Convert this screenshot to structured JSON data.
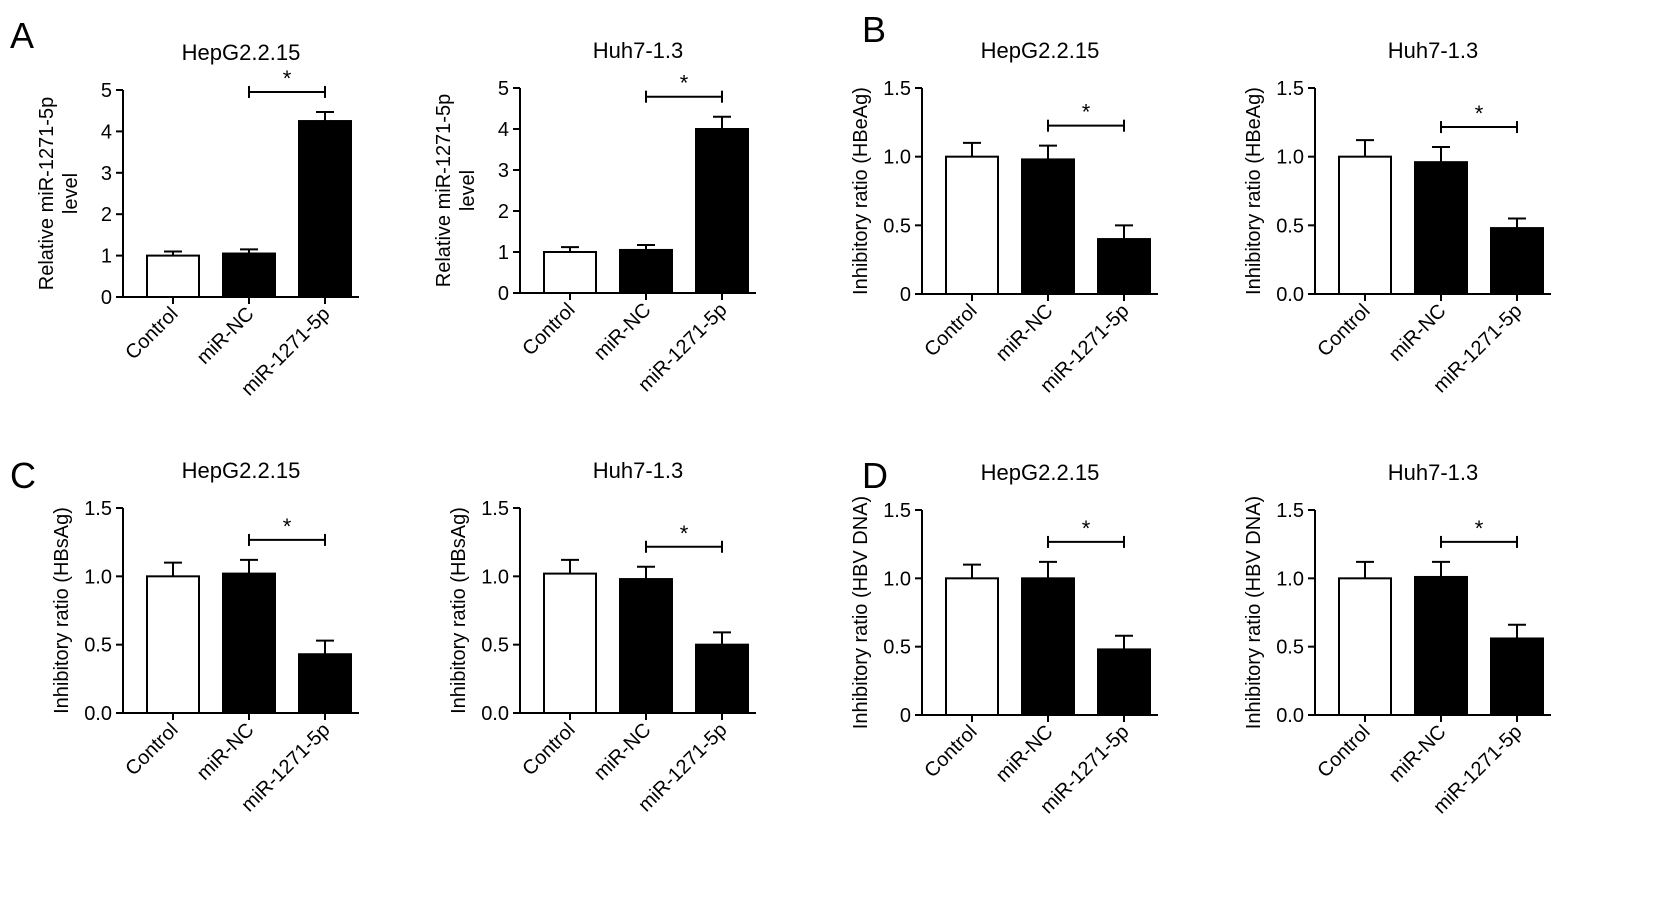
{
  "panels": [
    "A",
    "B",
    "C",
    "D"
  ],
  "chart_data": [
    {
      "panel": "A",
      "type": "bar",
      "title": "HepG2.2.15",
      "ylabel": [
        "Relative miR-1271-5p",
        "level"
      ],
      "categories": [
        "Control",
        "miR-NC",
        "miR-1271-5p"
      ],
      "values": [
        1.0,
        1.05,
        4.25
      ],
      "errors": [
        0.1,
        0.1,
        0.22
      ],
      "fills": [
        "#ffffff",
        "#000000",
        "#000000"
      ],
      "ylim": [
        0,
        5
      ],
      "yticks": [
        "0",
        "1",
        "2",
        "3",
        "4",
        "5"
      ],
      "significance": {
        "from": 1,
        "to": 2,
        "label": "*"
      }
    },
    {
      "panel": "A",
      "type": "bar",
      "title": "Huh7-1.3",
      "ylabel": [
        "Relative miR-1271-5p",
        "level"
      ],
      "categories": [
        "Control",
        "miR-NC",
        "miR-1271-5p"
      ],
      "values": [
        1.0,
        1.05,
        4.0
      ],
      "errors": [
        0.12,
        0.12,
        0.3
      ],
      "fills": [
        "#ffffff",
        "#000000",
        "#000000"
      ],
      "ylim": [
        0,
        5
      ],
      "yticks": [
        "0",
        "1",
        "2",
        "3",
        "4",
        "5"
      ],
      "significance": {
        "from": 1,
        "to": 2,
        "label": "*"
      }
    },
    {
      "panel": "B",
      "type": "bar",
      "title": "HepG2.2.15",
      "ylabel": [
        "Inhibitory ratio (HBeAg)"
      ],
      "categories": [
        "Control",
        "miR-NC",
        "miR-1271-5p"
      ],
      "values": [
        1.0,
        0.98,
        0.4
      ],
      "errors": [
        0.1,
        0.1,
        0.1
      ],
      "fills": [
        "#ffffff",
        "#000000",
        "#000000"
      ],
      "ylim": [
        0,
        1.5
      ],
      "yticks": [
        "0",
        "0.5",
        "1.0",
        "1.5"
      ],
      "significance": {
        "from": 1,
        "to": 2,
        "label": "*"
      }
    },
    {
      "panel": "B",
      "type": "bar",
      "title": "Huh7-1.3",
      "ylabel": [
        "Inhibitory ratio (HBeAg)"
      ],
      "categories": [
        "Control",
        "miR-NC",
        "miR-1271-5p"
      ],
      "values": [
        1.0,
        0.96,
        0.48
      ],
      "errors": [
        0.12,
        0.11,
        0.07
      ],
      "fills": [
        "#ffffff",
        "#000000",
        "#000000"
      ],
      "ylim": [
        0,
        1.5
      ],
      "yticks": [
        "0.0",
        "0.5",
        "1.0",
        "1.5"
      ],
      "significance": {
        "from": 1,
        "to": 2,
        "label": "*"
      }
    },
    {
      "panel": "C",
      "type": "bar",
      "title": "HepG2.2.15",
      "ylabel": [
        "Inhibitory ratio (HBsAg)"
      ],
      "categories": [
        "Control",
        "miR-NC",
        "miR-1271-5p"
      ],
      "values": [
        1.0,
        1.02,
        0.43
      ],
      "errors": [
        0.1,
        0.1,
        0.1
      ],
      "fills": [
        "#ffffff",
        "#000000",
        "#000000"
      ],
      "ylim": [
        0,
        1.5
      ],
      "yticks": [
        "0.0",
        "0.5",
        "1.0",
        "1.5"
      ],
      "significance": {
        "from": 1,
        "to": 2,
        "label": "*"
      }
    },
    {
      "panel": "C",
      "type": "bar",
      "title": "Huh7-1.3",
      "ylabel": [
        "Inhibitory ratio (HBsAg)"
      ],
      "categories": [
        "Control",
        "miR-NC",
        "miR-1271-5p"
      ],
      "values": [
        1.02,
        0.98,
        0.5
      ],
      "errors": [
        0.1,
        0.09,
        0.09
      ],
      "fills": [
        "#ffffff",
        "#000000",
        "#000000"
      ],
      "ylim": [
        0,
        1.5
      ],
      "yticks": [
        "0.0",
        "0.5",
        "1.0",
        "1.5"
      ],
      "significance": {
        "from": 1,
        "to": 2,
        "label": "*"
      }
    },
    {
      "panel": "D",
      "type": "bar",
      "title": "HepG2.2.15",
      "ylabel": [
        "Inhibitory ratio (HBV DNA)"
      ],
      "categories": [
        "Control",
        "miR-NC",
        "miR-1271-5p"
      ],
      "values": [
        1.0,
        1.0,
        0.48
      ],
      "errors": [
        0.1,
        0.12,
        0.1
      ],
      "fills": [
        "#ffffff",
        "#000000",
        "#000000"
      ],
      "ylim": [
        0,
        1.5
      ],
      "yticks": [
        "0",
        "0.5",
        "1.0",
        "1.5"
      ],
      "significance": {
        "from": 1,
        "to": 2,
        "label": "*"
      }
    },
    {
      "panel": "D",
      "type": "bar",
      "title": "Huh7-1.3",
      "ylabel": [
        "Inhibitory ratio (HBV DNA)"
      ],
      "categories": [
        "Control",
        "miR-NC",
        "miR-1271-5p"
      ],
      "values": [
        1.0,
        1.01,
        0.56
      ],
      "errors": [
        0.12,
        0.11,
        0.1
      ],
      "fills": [
        "#ffffff",
        "#000000",
        "#000000"
      ],
      "ylim": [
        0,
        1.5
      ],
      "yticks": [
        "0.0",
        "0.5",
        "1.0",
        "1.5"
      ],
      "significance": {
        "from": 1,
        "to": 2,
        "label": "*"
      }
    }
  ]
}
